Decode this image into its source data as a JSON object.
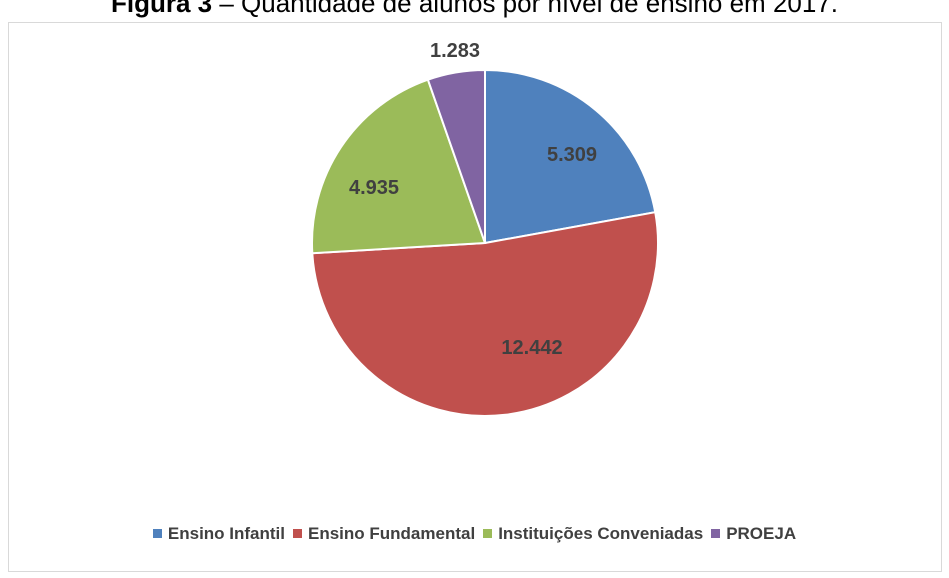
{
  "title_prefix": "Figura 3",
  "title_text": " – Quantidade de alunos por nível de ensino em 2017.",
  "chart_data": {
    "type": "pie",
    "categories": [
      "Ensino Infantil",
      "Ensino Fundamental",
      "Instituições Conveniadas",
      "PROEJA"
    ],
    "values": [
      5309,
      12442,
      4935,
      1283
    ],
    "labels": [
      "5.309",
      "12.442",
      "4.935",
      "1.283"
    ],
    "colors": [
      "#4f81bd",
      "#c0504d",
      "#9bbb59",
      "#8064a2"
    ],
    "legend_position": "bottom"
  }
}
